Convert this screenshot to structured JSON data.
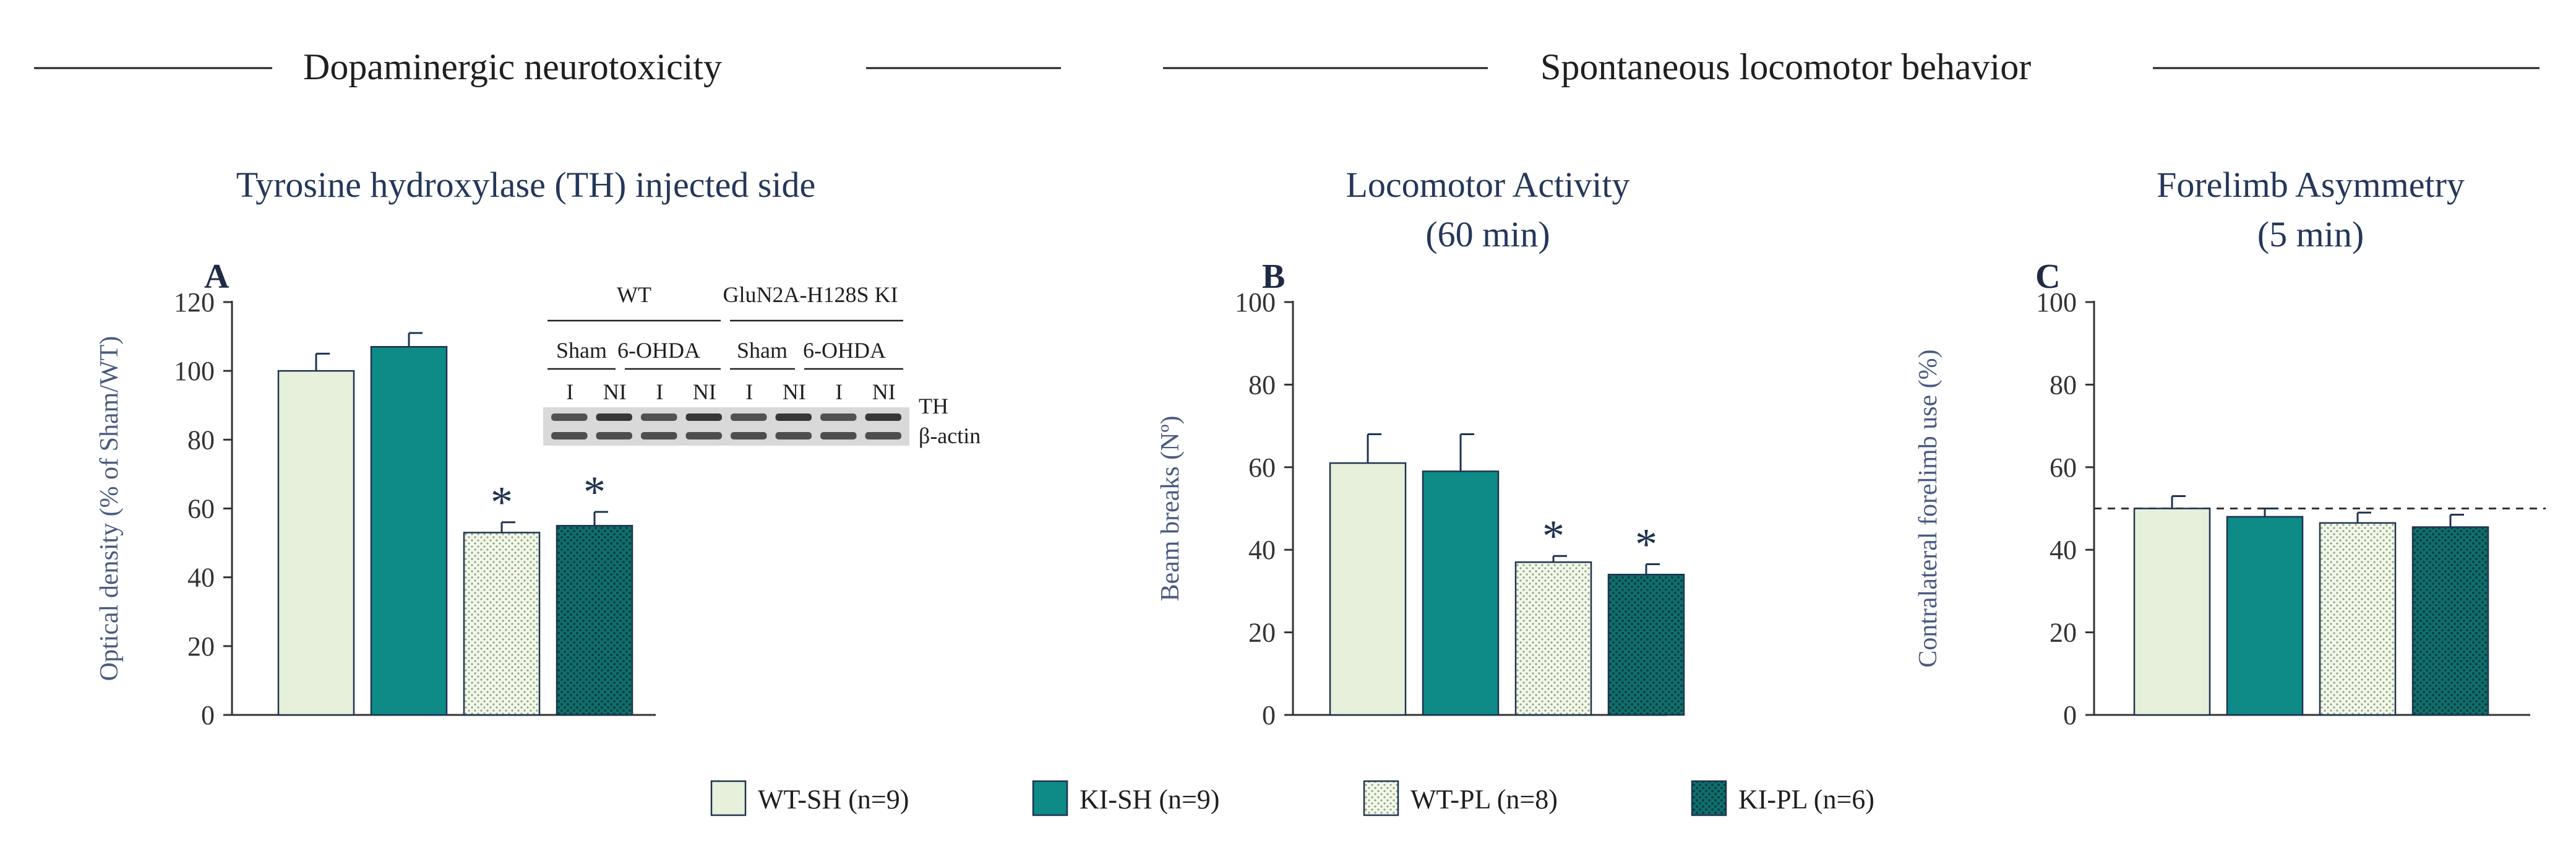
{
  "headers": {
    "left": "Dopaminergic  neurotoxicity",
    "right": "Spontaneous  locomotor behavior"
  },
  "colors": {
    "WT-SH": "#e6f0da",
    "KI-SH": "#0e8a87",
    "WT-PL_base": "#f3f7e8",
    "WT-PL_dot": "#8aa58a",
    "KI-PL_base": "#0f6f6d",
    "KI-PL_dot": "#0a3e3d",
    "bar_stroke": "#1f3350",
    "axis": "#333333"
  },
  "legend": [
    {
      "key": "WT-SH",
      "label": "WT-SH (n=9)"
    },
    {
      "key": "KI-SH",
      "label": "KI-SH (n=9)"
    },
    {
      "key": "WT-PL",
      "label": "WT-PL (n=8)"
    },
    {
      "key": "KI-PL",
      "label": "KI-PL (n=6)"
    }
  ],
  "chart_data": [
    {
      "type": "bar",
      "panel": "A",
      "title": "Tyrosine hydroxylase (TH) injected side",
      "ylabel": "Optical density  (% of Sham/WT)",
      "ylim": [
        0,
        120
      ],
      "yticks": [
        0,
        20,
        40,
        60,
        80,
        100,
        120
      ],
      "categories": [
        "WT-SH",
        "KI-SH",
        "WT-PL",
        "KI-PL"
      ],
      "values": [
        100,
        107,
        53,
        55
      ],
      "errors": [
        5,
        4,
        3,
        4
      ],
      "significant": [
        false,
        false,
        true,
        true
      ],
      "significance_marker": "*",
      "reference_line": null,
      "blot": {
        "group_labels": [
          "WT",
          "GluN2A-H128S   KI"
        ],
        "condition_labels": [
          "Sham",
          "6-OHDA",
          "Sham",
          "6-OHDA"
        ],
        "lane_labels": [
          "I",
          "NI",
          "I",
          "NI",
          "I",
          "NI",
          "I",
          "NI"
        ],
        "band_labels": [
          "TH",
          "β-actin"
        ]
      }
    },
    {
      "type": "bar",
      "panel": "B",
      "title": [
        "Locomotor Activity",
        "(60 min)"
      ],
      "ylabel": "Beam breaks (Nº)",
      "ylim": [
        0,
        100
      ],
      "yticks": [
        0,
        20,
        40,
        60,
        80,
        100
      ],
      "categories": [
        "WT-SH",
        "KI-SH",
        "WT-PL",
        "KI-PL"
      ],
      "values": [
        61,
        59,
        37,
        34
      ],
      "errors": [
        7,
        9,
        1.5,
        2.5
      ],
      "significant": [
        false,
        false,
        true,
        true
      ],
      "significance_marker": "*",
      "reference_line": null
    },
    {
      "type": "bar",
      "panel": "C",
      "title": [
        "Forelimb Asymmetry",
        "(5 min)"
      ],
      "ylabel": "Contralateral  forelimb  use  (%)",
      "ylim": [
        0,
        100
      ],
      "yticks": [
        0,
        20,
        40,
        60,
        80,
        100
      ],
      "categories": [
        "WT-SH",
        "KI-SH",
        "WT-PL",
        "KI-PL"
      ],
      "values": [
        50,
        48,
        46.5,
        45.5
      ],
      "errors": [
        3,
        2,
        2.5,
        3
      ],
      "significant": [
        false,
        false,
        false,
        false
      ],
      "significance_marker": "*",
      "reference_line": 50
    }
  ]
}
